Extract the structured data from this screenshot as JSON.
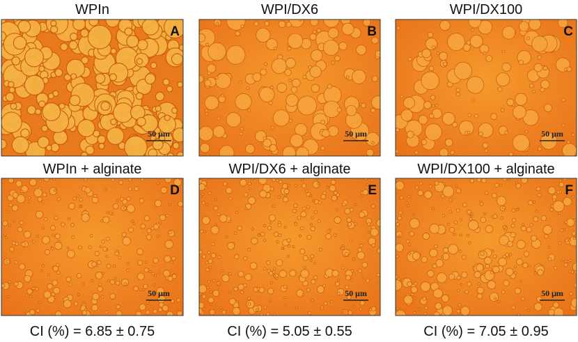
{
  "panels": [
    {
      "title": "WPIn",
      "letter": "A",
      "scale_label": "50 μm"
    },
    {
      "title": "WPI/DX6",
      "letter": "B",
      "scale_label": "50 μm"
    },
    {
      "title": "WPI/DX100",
      "letter": "C",
      "scale_label": "50 μm"
    },
    {
      "title": "WPIn + alginate",
      "letter": "D",
      "scale_label": "50 μm"
    },
    {
      "title": "WPI/DX6 + alginate",
      "letter": "E",
      "scale_label": "50 μm"
    },
    {
      "title": "WPI/DX100 + alginate",
      "letter": "F",
      "scale_label": "50 μm"
    }
  ],
  "captions": [
    "CI (%) = 6.85 ± 0.75",
    "CI (%) = 5.05 ± 0.55",
    "CI (%) = 7.05 ± 0.95"
  ]
}
